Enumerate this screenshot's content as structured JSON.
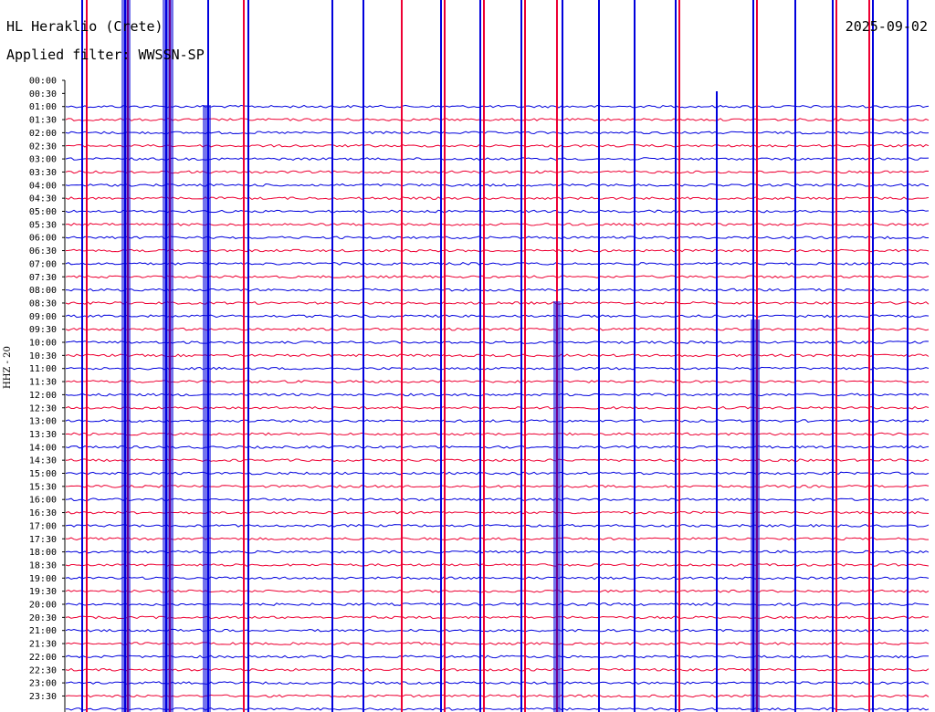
{
  "header": {
    "station": "HL Heraklio (Crete)",
    "date": "2025-09-02",
    "filter": "Applied filter: WWSSN-SP",
    "channel": "HHZ - 20"
  },
  "colors": {
    "trace_a": "#0000dd",
    "trace_b": "#ee0033",
    "axis": "#000000"
  },
  "chart_data": {
    "type": "line",
    "title": "HL Heraklio (Crete)",
    "ylabel": "HHZ - 20",
    "xlabel": "",
    "grid": false,
    "ticks": [
      "00:00",
      "00:30",
      "01:00",
      "01:30",
      "02:00",
      "02:30",
      "03:00",
      "03:30",
      "04:00",
      "04:30",
      "05:00",
      "05:30",
      "06:00",
      "06:30",
      "07:00",
      "07:30",
      "08:00",
      "08:30",
      "09:00",
      "09:30",
      "10:00",
      "10:30",
      "11:00",
      "11:30",
      "12:00",
      "12:30",
      "13:00",
      "13:30",
      "14:00",
      "14:30",
      "15:00",
      "15:30",
      "16:00",
      "16:30",
      "17:00",
      "17:30",
      "18:00",
      "18:30",
      "19:00",
      "19:30",
      "20:00",
      "20:30",
      "21:00",
      "21:30",
      "22:00",
      "22:30",
      "23:00",
      "23:30"
    ],
    "first_trace": "01:00",
    "series": [
      {
        "name": "",
        "color": "#0000dd"
      },
      {
        "name": "",
        "color": "#ee0033"
      }
    ]
  }
}
